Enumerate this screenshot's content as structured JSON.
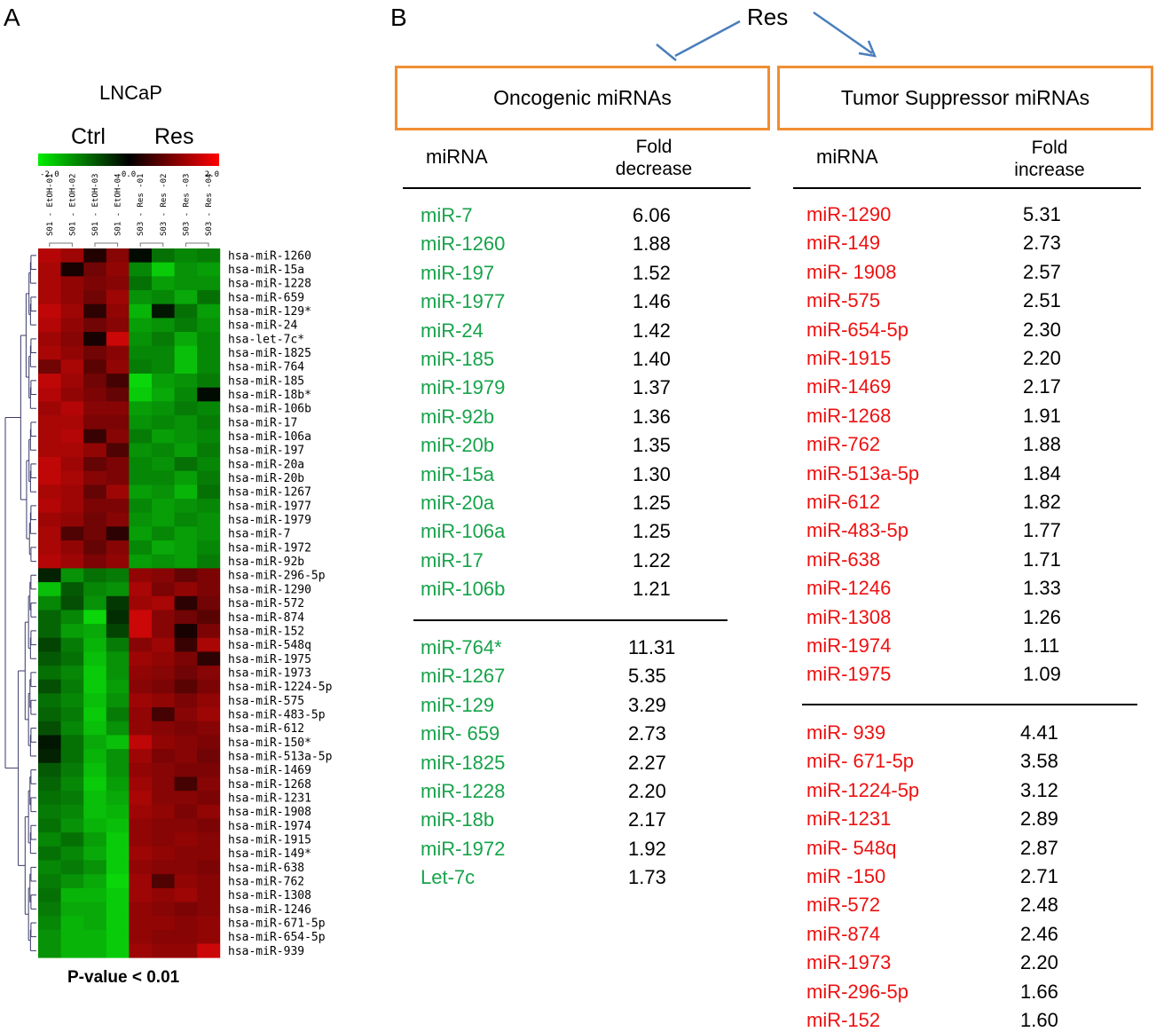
{
  "panel_a": {
    "letter": "A",
    "title": "LNCaP",
    "group_ctrl": "Ctrl",
    "group_res": "Res",
    "scale_min": "-2.0",
    "scale_mid": "0.0",
    "scale_max": "2.0",
    "samples": [
      "S01 - EtOH-01",
      "S01 - EtOH-02",
      "S01 - EtOH-03",
      "S01 - EtOH-04",
      "S03 - Res -01",
      "S03 - Res -02",
      "S03 - Res -03",
      "S03 - Res -04"
    ],
    "pvalue": "P-value < 0.01"
  },
  "panel_b": {
    "letter": "B",
    "res_label": "Res",
    "onco_title": "Oncogenic miRNAs",
    "tumor_title": "Tumor Suppressor miRNAs",
    "onco_col_mirna": "miRNA",
    "onco_col_fold_1": "Fold",
    "onco_col_fold_2": "decrease",
    "tumor_col_mirna": "miRNA",
    "tumor_col_fold_1": "Fold",
    "tumor_col_fold_2": "increase",
    "onco_group1": [
      [
        "miR-7",
        "6.06"
      ],
      [
        "miR-1260",
        "1.88"
      ],
      [
        "miR-197",
        "1.52"
      ],
      [
        "miR-1977",
        "1.46"
      ],
      [
        "miR-24",
        "1.42"
      ],
      [
        "miR-185",
        "1.40"
      ],
      [
        "miR-1979",
        "1.37"
      ],
      [
        "miR-92b",
        "1.36"
      ],
      [
        "miR-20b",
        "1.35"
      ],
      [
        "miR-15a",
        "1.30"
      ],
      [
        "miR-20a",
        "1.25"
      ],
      [
        "miR-106a",
        "1.25"
      ],
      [
        "miR-17",
        "1.22"
      ],
      [
        "miR-106b",
        "1.21"
      ]
    ],
    "onco_group2": [
      [
        "miR-764*",
        "11.31"
      ],
      [
        "miR-1267",
        "5.35"
      ],
      [
        "miR-129",
        "3.29"
      ],
      [
        "miR- 659",
        "2.73"
      ],
      [
        "miR-1825",
        "2.27"
      ],
      [
        "miR-1228",
        "2.20"
      ],
      [
        "miR-18b",
        "2.17"
      ],
      [
        "miR-1972",
        "1.92"
      ],
      [
        "Let-7c",
        "1.73"
      ]
    ],
    "tumor_group1": [
      [
        "miR-1290",
        "5.31"
      ],
      [
        "miR-149",
        "2.73"
      ],
      [
        "miR- 1908",
        "2.57"
      ],
      [
        "miR-575",
        "2.51"
      ],
      [
        "miR-654-5p",
        "2.30"
      ],
      [
        "miR-1915",
        "2.20"
      ],
      [
        "miR-1469",
        "2.17"
      ],
      [
        "miR-1268",
        "1.91"
      ],
      [
        "miR-762",
        "1.88"
      ],
      [
        "miR-513a-5p",
        "1.84"
      ],
      [
        "miR-612",
        "1.82"
      ],
      [
        "miR-483-5p",
        "1.77"
      ],
      [
        "miR-638",
        "1.71"
      ],
      [
        "miR-1246",
        "1.33"
      ],
      [
        "miR-1308",
        "1.26"
      ],
      [
        "miR-1974",
        "1.11"
      ],
      [
        "miR-1975",
        "1.09"
      ]
    ],
    "tumor_group2": [
      [
        "miR- 939",
        "4.41"
      ],
      [
        "miR- 671-5p",
        "3.58"
      ],
      [
        "miR-1224-5p",
        "3.12"
      ],
      [
        "miR-1231",
        "2.89"
      ],
      [
        "miR- 548q",
        "2.87"
      ],
      [
        "miR -150",
        "2.71"
      ],
      [
        "miR-572",
        "2.48"
      ],
      [
        "miR-874",
        "2.46"
      ],
      [
        "miR-1973",
        "2.20"
      ],
      [
        "miR-296-5p",
        "1.66"
      ],
      [
        "miR-152",
        "1.60"
      ]
    ]
  },
  "colors": {
    "green": "#16a34a",
    "red": "#ee1111",
    "box_orange": "#f08e33",
    "arrow_blue": "#4a7ebb"
  },
  "chart_data": {
    "type": "heatmap",
    "title": "LNCaP",
    "groups": [
      "Ctrl",
      "Res"
    ],
    "color_scale": {
      "min": -2.0,
      "mid": 0.0,
      "max": 2.0,
      "low_color": "green",
      "mid_color": "black",
      "high_color": "red"
    },
    "columns": [
      "S01 - EtOH-01",
      "S01 - EtOH-02",
      "S01 - EtOH-03",
      "S01 - EtOH-04",
      "S03 - Res -01",
      "S03 - Res -02",
      "S03 - Res -03",
      "S03 - Res -04"
    ],
    "rows": [
      {
        "name": "hsa-miR-1260",
        "values": [
          1.6,
          1.4,
          0.3,
          1.2,
          -0.1,
          -1.0,
          -1.2,
          -1.1
        ]
      },
      {
        "name": "hsa-miR-15a",
        "values": [
          1.5,
          0.2,
          1.0,
          1.3,
          -1.2,
          -1.8,
          -1.3,
          -1.4
        ]
      },
      {
        "name": "hsa-miR-1228",
        "values": [
          1.5,
          1.3,
          1.1,
          1.2,
          -1.0,
          -1.4,
          -1.3,
          -1.3
        ]
      },
      {
        "name": "hsa-miR-659",
        "values": [
          1.5,
          1.3,
          1.0,
          1.4,
          -1.3,
          -1.2,
          -1.5,
          -1.0
        ]
      },
      {
        "name": "hsa-miR-129*",
        "values": [
          1.7,
          1.4,
          0.4,
          1.3,
          -1.6,
          -0.2,
          -1.0,
          -1.4
        ]
      },
      {
        "name": "hsa-miR-24",
        "values": [
          1.6,
          1.3,
          1.0,
          1.2,
          -1.4,
          -1.3,
          -1.1,
          -1.3
        ]
      },
      {
        "name": "hsa-let-7c*",
        "values": [
          1.4,
          1.2,
          0.2,
          1.8,
          -1.3,
          -1.1,
          -1.5,
          -1.2
        ]
      },
      {
        "name": "hsa-miR-1825",
        "values": [
          1.5,
          1.3,
          1.0,
          1.2,
          -1.2,
          -1.2,
          -1.7,
          -1.2
        ]
      },
      {
        "name": "hsa-miR-764",
        "values": [
          1.0,
          1.5,
          0.8,
          1.3,
          -1.1,
          -1.2,
          -1.7,
          -1.2
        ]
      },
      {
        "name": "hsa-miR-185",
        "values": [
          1.7,
          1.4,
          1.0,
          0.6,
          -1.9,
          -1.4,
          -1.3,
          -1.1
        ]
      },
      {
        "name": "hsa-miR-18b*",
        "values": [
          1.6,
          1.3,
          1.1,
          0.9,
          -1.8,
          -1.5,
          -1.2,
          -0.1
        ]
      },
      {
        "name": "hsa-miR-106b",
        "values": [
          1.4,
          1.6,
          1.2,
          1.2,
          -1.4,
          -1.3,
          -1.1,
          -1.2
        ]
      },
      {
        "name": "hsa-miR-17",
        "values": [
          1.5,
          1.5,
          1.1,
          1.1,
          -1.3,
          -1.2,
          -1.3,
          -1.1
        ]
      },
      {
        "name": "hsa-miR-106a",
        "values": [
          1.5,
          1.6,
          0.5,
          1.2,
          -1.1,
          -1.4,
          -1.3,
          -1.2
        ]
      },
      {
        "name": "hsa-miR-197",
        "values": [
          1.5,
          1.5,
          1.3,
          0.7,
          -1.3,
          -1.2,
          -1.4,
          -1.1
        ]
      },
      {
        "name": "hsa-miR-20a",
        "values": [
          1.7,
          1.4,
          0.9,
          1.1,
          -1.2,
          -1.3,
          -1.0,
          -1.2
        ]
      },
      {
        "name": "hsa-miR-20b",
        "values": [
          1.7,
          1.5,
          1.2,
          1.1,
          -1.2,
          -1.2,
          -1.4,
          -1.1
        ]
      },
      {
        "name": "hsa-miR-1267",
        "values": [
          1.5,
          1.4,
          0.9,
          1.4,
          -1.4,
          -1.3,
          -1.6,
          -1.0
        ]
      },
      {
        "name": "hsa-miR-1977",
        "values": [
          1.6,
          1.4,
          1.1,
          1.1,
          -1.2,
          -1.4,
          -1.3,
          -1.2
        ]
      },
      {
        "name": "hsa-miR-1979",
        "values": [
          1.4,
          1.3,
          1.0,
          1.2,
          -1.3,
          -1.4,
          -1.2,
          -1.3
        ]
      },
      {
        "name": "hsa-miR-7",
        "values": [
          1.5,
          0.7,
          1.0,
          0.4,
          -1.4,
          -1.2,
          -1.4,
          -1.3
        ]
      },
      {
        "name": "hsa-miR-1972",
        "values": [
          1.5,
          1.3,
          0.9,
          1.2,
          -1.2,
          -1.5,
          -1.4,
          -1.2
        ]
      },
      {
        "name": "hsa-miR-92b",
        "values": [
          1.6,
          1.4,
          1.1,
          1.3,
          -1.4,
          -1.3,
          -1.4,
          -1.1
        ]
      },
      {
        "name": "hsa-miR-296-5p",
        "values": [
          -0.3,
          -1.3,
          -1.0,
          -1.1,
          1.3,
          1.2,
          0.9,
          1.1
        ]
      },
      {
        "name": "hsa-miR-1290",
        "values": [
          -1.7,
          -0.8,
          -1.2,
          -1.3,
          1.5,
          1.1,
          1.3,
          1.1
        ]
      },
      {
        "name": "hsa-miR-572",
        "values": [
          -1.2,
          -0.7,
          -1.3,
          -0.5,
          1.4,
          1.5,
          0.4,
          1.0
        ]
      },
      {
        "name": "hsa-miR-874",
        "values": [
          -0.9,
          -1.2,
          -1.9,
          -0.4,
          1.8,
          1.2,
          1.0,
          0.8
        ]
      },
      {
        "name": "hsa-miR-152",
        "values": [
          -0.9,
          -1.4,
          -1.5,
          -0.6,
          1.8,
          1.2,
          0.2,
          1.1
        ]
      },
      {
        "name": "hsa-miR-548q",
        "values": [
          -0.6,
          -1.1,
          -1.6,
          -1.1,
          1.2,
          1.4,
          0.5,
          1.5
        ]
      },
      {
        "name": "hsa-miR-1975",
        "values": [
          -0.8,
          -1.0,
          -1.7,
          -1.3,
          1.4,
          1.3,
          1.1,
          0.4
        ]
      },
      {
        "name": "hsa-miR-1973",
        "values": [
          -1.0,
          -1.2,
          -1.8,
          -1.3,
          1.3,
          1.2,
          1.0,
          1.2
        ]
      },
      {
        "name": "hsa-miR-1224-5p",
        "values": [
          -0.7,
          -1.1,
          -1.8,
          -1.4,
          1.2,
          1.1,
          0.8,
          1.1
        ]
      },
      {
        "name": "hsa-miR-575",
        "values": [
          -1.0,
          -1.2,
          -1.7,
          -1.3,
          1.4,
          1.3,
          1.1,
          1.3
        ]
      },
      {
        "name": "hsa-miR-483-5p",
        "values": [
          -0.9,
          -1.1,
          -1.8,
          -1.1,
          1.3,
          0.6,
          1.2,
          1.4
        ]
      },
      {
        "name": "hsa-miR-612",
        "values": [
          -0.7,
          -1.2,
          -1.7,
          -1.3,
          1.3,
          1.2,
          1.1,
          1.2
        ]
      },
      {
        "name": "hsa-miR-150*",
        "values": [
          -0.2,
          -1.0,
          -1.5,
          -1.7,
          1.7,
          1.3,
          1.2,
          1.1
        ]
      },
      {
        "name": "hsa-miR-513a-5p",
        "values": [
          -0.3,
          -1.0,
          -1.6,
          -1.3,
          1.4,
          1.1,
          1.2,
          1.0
        ]
      },
      {
        "name": "hsa-miR-1469",
        "values": [
          -0.8,
          -1.1,
          -1.7,
          -1.3,
          1.3,
          1.2,
          1.1,
          1.1
        ]
      },
      {
        "name": "hsa-miR-1268",
        "values": [
          -0.9,
          -1.2,
          -1.8,
          -1.4,
          1.4,
          1.2,
          0.6,
          1.2
        ]
      },
      {
        "name": "hsa-miR-1231",
        "values": [
          -1.0,
          -1.1,
          -1.7,
          -1.5,
          1.5,
          1.2,
          1.2,
          1.1
        ]
      },
      {
        "name": "hsa-miR-1908",
        "values": [
          -1.1,
          -1.2,
          -1.7,
          -1.6,
          1.4,
          1.3,
          1.1,
          1.3
        ]
      },
      {
        "name": "hsa-miR-1974",
        "values": [
          -1.0,
          -1.3,
          -1.6,
          -1.7,
          1.3,
          1.2,
          1.2,
          1.1
        ]
      },
      {
        "name": "hsa-miR-1915",
        "values": [
          -1.2,
          -1.0,
          -1.4,
          -1.8,
          1.3,
          1.2,
          1.3,
          1.2
        ]
      },
      {
        "name": "hsa-miR-149*",
        "values": [
          -1.0,
          -1.2,
          -1.5,
          -1.8,
          1.4,
          1.3,
          1.2,
          1.2
        ]
      },
      {
        "name": "hsa-miR-638",
        "values": [
          -1.2,
          -1.1,
          -1.3,
          -1.8,
          1.3,
          1.2,
          1.2,
          1.1
        ]
      },
      {
        "name": "hsa-miR-762",
        "values": [
          -1.1,
          -1.3,
          -1.5,
          -1.9,
          1.4,
          0.7,
          1.3,
          1.2
        ]
      },
      {
        "name": "hsa-miR-1308",
        "values": [
          -1.0,
          -1.6,
          -1.6,
          -1.8,
          1.4,
          1.3,
          1.4,
          1.2
        ]
      },
      {
        "name": "hsa-miR-1246",
        "values": [
          -1.1,
          -1.5,
          -1.5,
          -1.8,
          1.3,
          1.2,
          1.1,
          1.2
        ]
      },
      {
        "name": "hsa-miR-671-5p",
        "values": [
          -1.2,
          -1.6,
          -1.5,
          -1.8,
          1.3,
          1.3,
          1.2,
          1.3
        ]
      },
      {
        "name": "hsa-miR-654-5p",
        "values": [
          -1.3,
          -1.6,
          -1.6,
          -1.8,
          1.3,
          1.2,
          1.2,
          1.3
        ]
      },
      {
        "name": "hsa-miR-939",
        "values": [
          -1.3,
          -1.6,
          -1.6,
          -1.8,
          1.4,
          1.3,
          1.3,
          1.8
        ]
      }
    ]
  }
}
